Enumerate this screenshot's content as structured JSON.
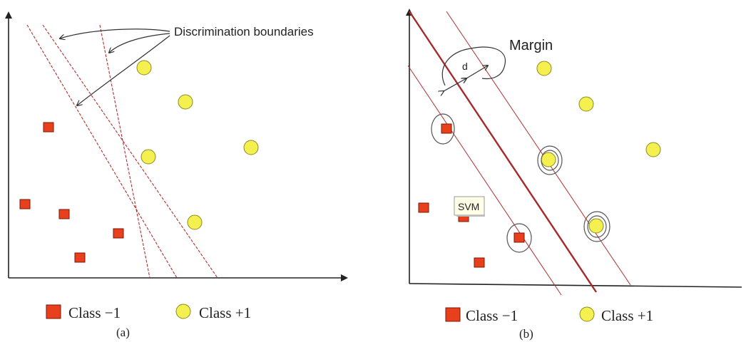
{
  "panel_a": {
    "annotation": "Discrimination boundaries",
    "legend": {
      "class_neg": "Class −1",
      "class_pos": "Class +1"
    },
    "caption": "(a)"
  },
  "panel_b": {
    "margin_label": "Margin",
    "distance_label": "d",
    "tooltip": "SVM",
    "legend": {
      "class_neg": "Class −1",
      "class_pos": "Class +1"
    },
    "caption": "(b)"
  },
  "colors": {
    "class_neg_fill": "#e8401c",
    "class_pos_fill": "#f4f050",
    "boundary": "#b03030",
    "axis": "#222222"
  }
}
